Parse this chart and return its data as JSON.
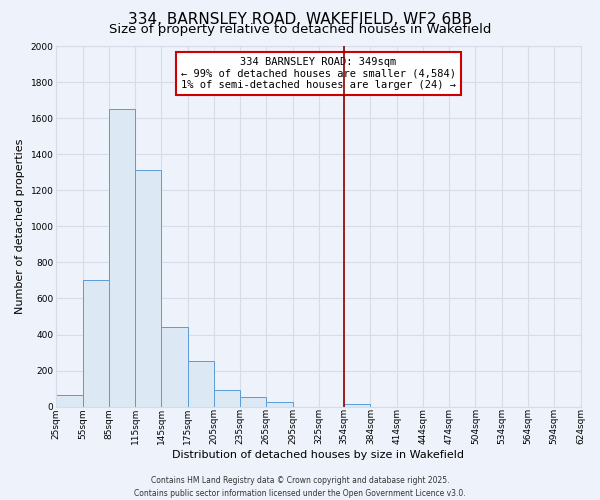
{
  "title": "334, BARNSLEY ROAD, WAKEFIELD, WF2 6BB",
  "subtitle": "Size of property relative to detached houses in Wakefield",
  "xlabel": "Distribution of detached houses by size in Wakefield",
  "ylabel": "Number of detached properties",
  "bin_edges": [
    25,
    55,
    85,
    115,
    145,
    175,
    205,
    235,
    265,
    295,
    325,
    354,
    384,
    414,
    444,
    474,
    504,
    534,
    564,
    594,
    624
  ],
  "bar_heights": [
    65,
    700,
    1650,
    1310,
    440,
    255,
    90,
    55,
    25,
    0,
    0,
    15,
    0,
    0,
    0,
    0,
    0,
    0,
    0,
    0
  ],
  "bar_color": "#dce9f5",
  "bar_edge_color": "#5b9bd5",
  "vline_x": 354,
  "vline_color": "#8b0000",
  "ylim": [
    0,
    2000
  ],
  "yticks": [
    0,
    200,
    400,
    600,
    800,
    1000,
    1200,
    1400,
    1600,
    1800,
    2000
  ],
  "annotation_title": "334 BARNSLEY ROAD: 349sqm",
  "annotation_line1": "← 99% of detached houses are smaller (4,584)",
  "annotation_line2": "1% of semi-detached houses are larger (24) →",
  "annotation_box_color": "white",
  "annotation_box_edge": "#cc0000",
  "background_color": "#eef2fa",
  "grid_color": "#d8dce8",
  "tick_labels": [
    "25sqm",
    "55sqm",
    "85sqm",
    "115sqm",
    "145sqm",
    "175sqm",
    "205sqm",
    "235sqm",
    "265sqm",
    "295sqm",
    "325sqm",
    "354sqm",
    "384sqm",
    "414sqm",
    "444sqm",
    "474sqm",
    "504sqm",
    "534sqm",
    "564sqm",
    "594sqm",
    "624sqm"
  ],
  "footer_line1": "Contains HM Land Registry data © Crown copyright and database right 2025.",
  "footer_line2": "Contains public sector information licensed under the Open Government Licence v3.0.",
  "title_fontsize": 11,
  "subtitle_fontsize": 9.5,
  "axis_label_fontsize": 8,
  "tick_fontsize": 6.5,
  "annotation_fontsize": 7.5,
  "footer_fontsize": 5.5
}
